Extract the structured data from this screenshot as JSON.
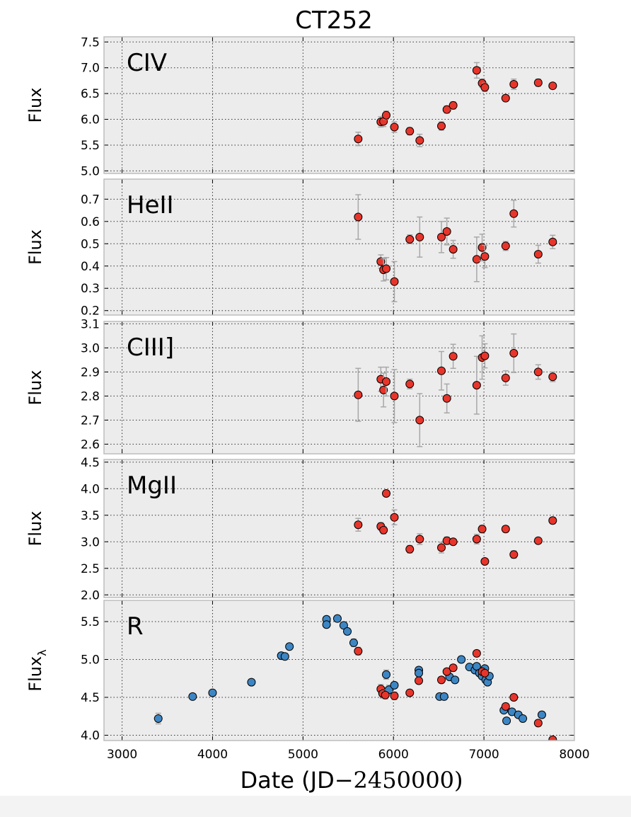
{
  "chart_data": {
    "title": "CT252",
    "xlabel_text": "Date (JD",
    "xlabel_math": "−2450000)",
    "xlim": [
      2800,
      8000
    ],
    "xticks": [
      3000,
      4000,
      5000,
      6000,
      7000,
      8000
    ],
    "colors": {
      "red": "#e8352b",
      "blue": "#3d86c4",
      "panel_bg": "#ececec",
      "errbar": "#a8a8a8"
    },
    "panels": [
      {
        "label": "CIV",
        "ylabel": "Flux",
        "ylabel_sub": "",
        "ylim": [
          4.95,
          7.6
        ],
        "yticks": [
          "5.0",
          "5.5",
          "6.0",
          "6.5",
          "7.0",
          "7.5"
        ],
        "series": [
          {
            "color": "red",
            "points": [
              [
                5610,
                5.62,
                0.13
              ],
              [
                5860,
                5.95,
                0.1
              ],
              [
                5890,
                5.96,
                0.1
              ],
              [
                5920,
                6.08,
                0.08
              ],
              [
                6010,
                5.85,
                0.1
              ],
              [
                6180,
                5.77,
                0.07
              ],
              [
                6290,
                5.59,
                0.12
              ],
              [
                6530,
                5.87,
                0.08
              ],
              [
                6590,
                6.19,
                0.07
              ],
              [
                6660,
                6.27,
                0.07
              ],
              [
                6920,
                6.95,
                0.15
              ],
              [
                6980,
                6.7,
                0.08
              ],
              [
                7010,
                6.62,
                0.08
              ],
              [
                7240,
                6.41,
                0.06
              ],
              [
                7330,
                6.68,
                0.1
              ],
              [
                7600,
                6.71,
                0.07
              ],
              [
                7760,
                6.65,
                0.05
              ]
            ]
          }
        ]
      },
      {
        "label": "HeII",
        "ylabel": "Flux",
        "ylabel_sub": "",
        "ylim": [
          0.18,
          0.79
        ],
        "yticks": [
          "0.2",
          "0.3",
          "0.4",
          "0.5",
          "0.6",
          "0.7"
        ],
        "series": [
          {
            "color": "red",
            "points": [
              [
                5610,
                0.62,
                0.1
              ],
              [
                5860,
                0.42,
                0.03
              ],
              [
                5890,
                0.383,
                0.05
              ],
              [
                5920,
                0.388,
                0.05
              ],
              [
                6010,
                0.33,
                0.09
              ],
              [
                6180,
                0.52,
                0.02
              ],
              [
                6290,
                0.53,
                0.09
              ],
              [
                6530,
                0.53,
                0.07
              ],
              [
                6590,
                0.555,
                0.06
              ],
              [
                6660,
                0.475,
                0.04
              ],
              [
                6920,
                0.43,
                0.1
              ],
              [
                6980,
                0.483,
                0.06
              ],
              [
                7010,
                0.443,
                0.05
              ],
              [
                7240,
                0.49,
                0.02
              ],
              [
                7330,
                0.635,
                0.06
              ],
              [
                7600,
                0.453,
                0.04
              ],
              [
                7760,
                0.508,
                0.03
              ]
            ]
          }
        ]
      },
      {
        "label": "CIII]",
        "ylabel": "Flux",
        "ylabel_sub": "",
        "ylim": [
          2.56,
          3.11
        ],
        "yticks": [
          "2.6",
          "2.7",
          "2.8",
          "2.9",
          "3.0",
          "3.1"
        ],
        "series": [
          {
            "color": "red",
            "points": [
              [
                5610,
                2.805,
                0.11
              ],
              [
                5860,
                2.87,
                0.05
              ],
              [
                5890,
                2.825,
                0.07
              ],
              [
                5920,
                2.86,
                0.06
              ],
              [
                6010,
                2.8,
                0.11
              ],
              [
                6180,
                2.85,
                0.02
              ],
              [
                6290,
                2.7,
                0.11
              ],
              [
                6530,
                2.905,
                0.08
              ],
              [
                6590,
                2.79,
                0.06
              ],
              [
                6660,
                2.965,
                0.05
              ],
              [
                6920,
                2.845,
                0.12
              ],
              [
                6980,
                2.96,
                0.09
              ],
              [
                7010,
                2.967,
                0.05
              ],
              [
                7240,
                2.875,
                0.03
              ],
              [
                7330,
                2.978,
                0.08
              ],
              [
                7600,
                2.9,
                0.03
              ],
              [
                7760,
                2.88,
                0.02
              ]
            ]
          }
        ]
      },
      {
        "label": "MgII",
        "ylabel": "Flux",
        "ylabel_sub": "",
        "ylim": [
          1.95,
          4.55
        ],
        "yticks": [
          "2.0",
          "2.5",
          "3.0",
          "3.5",
          "4.0",
          "4.5"
        ],
        "series": [
          {
            "color": "red",
            "points": [
              [
                5610,
                3.32,
                0.12
              ],
              [
                5860,
                3.29,
                0.07
              ],
              [
                5890,
                3.22,
                0.07
              ],
              [
                5920,
                3.91,
                0.05
              ],
              [
                6010,
                3.46,
                0.14
              ],
              [
                6180,
                2.86,
                0.07
              ],
              [
                6290,
                3.05,
                0.1
              ],
              [
                6530,
                2.89,
                0.1
              ],
              [
                6590,
                3.02,
                0.07
              ],
              [
                6660,
                3.0,
                0.05
              ],
              [
                6920,
                3.05,
                0.09
              ],
              [
                6980,
                3.24,
                0.07
              ],
              [
                7010,
                2.63,
                0.05
              ],
              [
                7240,
                3.24,
                0.06
              ],
              [
                7330,
                2.76,
                0.07
              ],
              [
                7600,
                3.02,
                0.05
              ],
              [
                7760,
                3.4,
                0.06
              ]
            ]
          }
        ]
      },
      {
        "label": "R",
        "ylabel": "Flux",
        "ylabel_sub": "λ",
        "ylim": [
          3.93,
          5.78
        ],
        "yticks": [
          "4.0",
          "4.5",
          "5.0",
          "5.5"
        ],
        "series": [
          {
            "color": "blue",
            "points": [
              [
                3400,
                4.22,
                0.07
              ],
              [
                3780,
                4.51,
                0.03
              ],
              [
                4000,
                4.56,
                0.04
              ],
              [
                4430,
                4.7,
                0.04
              ],
              [
                4760,
                5.05,
                0.04
              ],
              [
                4800,
                5.04,
                0.04
              ],
              [
                4850,
                5.17,
                0.04
              ],
              [
                5260,
                5.53,
                0.04
              ],
              [
                5260,
                5.46,
                0.04
              ],
              [
                5380,
                5.54,
                0.04
              ],
              [
                5450,
                5.45,
                0.04
              ],
              [
                5490,
                5.37,
                0.04
              ],
              [
                5560,
                5.22,
                0.05
              ],
              [
                5880,
                4.56,
                0.07
              ],
              [
                5920,
                4.8,
                0.06
              ],
              [
                5950,
                4.6,
                0.06
              ],
              [
                6010,
                4.66,
                0.04
              ],
              [
                6280,
                4.86,
                0.04
              ],
              [
                6280,
                4.82,
                0.04
              ],
              [
                6510,
                4.51,
                0.04
              ],
              [
                6560,
                4.51,
                0.04
              ],
              [
                6620,
                4.77,
                0.04
              ],
              [
                6680,
                4.73,
                0.04
              ],
              [
                6750,
                5.0,
                0.04
              ],
              [
                6840,
                4.9,
                0.03
              ],
              [
                6900,
                4.86,
                0.03
              ],
              [
                6920,
                4.91,
                0.03
              ],
              [
                6950,
                4.82,
                0.03
              ],
              [
                6980,
                4.78,
                0.03
              ],
              [
                7010,
                4.88,
                0.03
              ],
              [
                7020,
                4.73,
                0.03
              ],
              [
                7040,
                4.7,
                0.03
              ],
              [
                7060,
                4.78,
                0.03
              ],
              [
                7220,
                4.33,
                0.03
              ],
              [
                7250,
                4.19,
                0.04
              ],
              [
                7310,
                4.31,
                0.03
              ],
              [
                7380,
                4.27,
                0.03
              ],
              [
                7430,
                4.22,
                0.03
              ],
              [
                7640,
                4.27,
                0.04
              ]
            ]
          },
          {
            "color": "red",
            "points": [
              [
                5610,
                5.11,
                0.05
              ],
              [
                5860,
                4.61,
                0.06
              ],
              [
                5880,
                4.55,
                0.05
              ],
              [
                5910,
                4.53,
                0.05
              ],
              [
                6010,
                4.52,
                0.05
              ],
              [
                6180,
                4.56,
                0.04
              ],
              [
                6280,
                4.72,
                0.04
              ],
              [
                6530,
                4.73,
                0.04
              ],
              [
                6590,
                4.84,
                0.04
              ],
              [
                6660,
                4.89,
                0.04
              ],
              [
                6920,
                5.08,
                0.04
              ],
              [
                6980,
                4.84,
                0.04
              ],
              [
                7010,
                4.82,
                0.04
              ],
              [
                7240,
                4.38,
                0.04
              ],
              [
                7330,
                4.5,
                0.04
              ],
              [
                7600,
                4.16,
                0.04
              ],
              [
                7760,
                3.94,
                0.04
              ]
            ]
          }
        ]
      }
    ]
  }
}
